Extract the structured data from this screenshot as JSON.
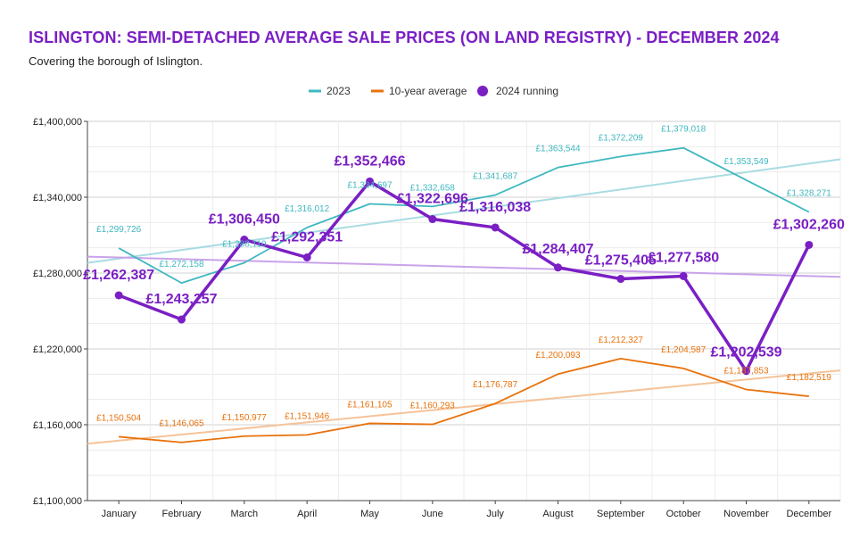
{
  "header": {
    "title": "ISLINGTON: SEMI-DETACHED AVERAGE SALE PRICES (ON LAND REGISTRY) - DECEMBER 2024",
    "subtitle": "Covering the borough of Islington."
  },
  "chart_data": {
    "type": "line",
    "title": "ISLINGTON: SEMI-DETACHED AVERAGE SALE PRICES (ON LAND REGISTRY) - DECEMBER 2024",
    "subtitle": "Covering the borough of Islington.",
    "categories": [
      "January",
      "February",
      "March",
      "April",
      "May",
      "June",
      "July",
      "August",
      "September",
      "October",
      "November",
      "December"
    ],
    "ylim": [
      1100000,
      1400000
    ],
    "yticks": [
      1100000,
      1160000,
      1220000,
      1280000,
      1340000,
      1400000
    ],
    "ytick_labels": [
      "£1,100,000",
      "£1,160,000",
      "£1,220,000",
      "£1,280,000",
      "£1,340,000",
      "£1,400,000"
    ],
    "legend_position": "top-center",
    "grid": true,
    "series": [
      {
        "name": "2023",
        "color": "#3fb8c0",
        "trend_color": "#a8dce2",
        "values": [
          1299726,
          1272158,
          1288110,
          1316012,
          1334697,
          1332658,
          1341687,
          1363544,
          1372209,
          1379018,
          1353549,
          1328271
        ],
        "labels": [
          "£1,299,726",
          "£1,272,158",
          "£1,288,110",
          "£1,316,012",
          "£1,334,697",
          "£1,332,658",
          "£1,341,687",
          "£1,363,544",
          "£1,372,209",
          "£1,379,018",
          "£1,353,549",
          "£1,328,271"
        ],
        "trend": [
          1288000,
          1370000
        ]
      },
      {
        "name": "10-year average",
        "color": "#e8720c",
        "trend_color": "#f5c39a",
        "values": [
          1150504,
          1146065,
          1150977,
          1151946,
          1161105,
          1160293,
          1176787,
          1200093,
          1212327,
          1204587,
          1187853,
          1182519
        ],
        "labels": [
          "£1,150,504",
          "£1,146,065",
          "£1,150,977",
          "£1,151,946",
          "£1,161,105",
          "£1,160,293",
          "£1,176,787",
          "£1,200,093",
          "£1,212,327",
          "£1,204,587",
          "£1,187,853",
          "£1,182,519"
        ],
        "trend": [
          1145000,
          1203000
        ]
      },
      {
        "name": "2024 running",
        "color": "#7a1fc4",
        "trend_color": "#c9a3ea",
        "values": [
          1262387,
          1243257,
          1306450,
          1292351,
          1352466,
          1322696,
          1316038,
          1284407,
          1275405,
          1277580,
          1202539,
          1302260
        ],
        "labels": [
          "£1,262,387",
          "£1,243,257",
          "£1,306,450",
          "£1,292,351",
          "£1,352,466",
          "£1,322,696",
          "£1,316,038",
          "£1,284,407",
          "£1,275,405",
          "£1,277,580",
          "£1,202,539",
          "£1,302,260"
        ],
        "trend": [
          1293000,
          1277000
        ]
      }
    ]
  }
}
